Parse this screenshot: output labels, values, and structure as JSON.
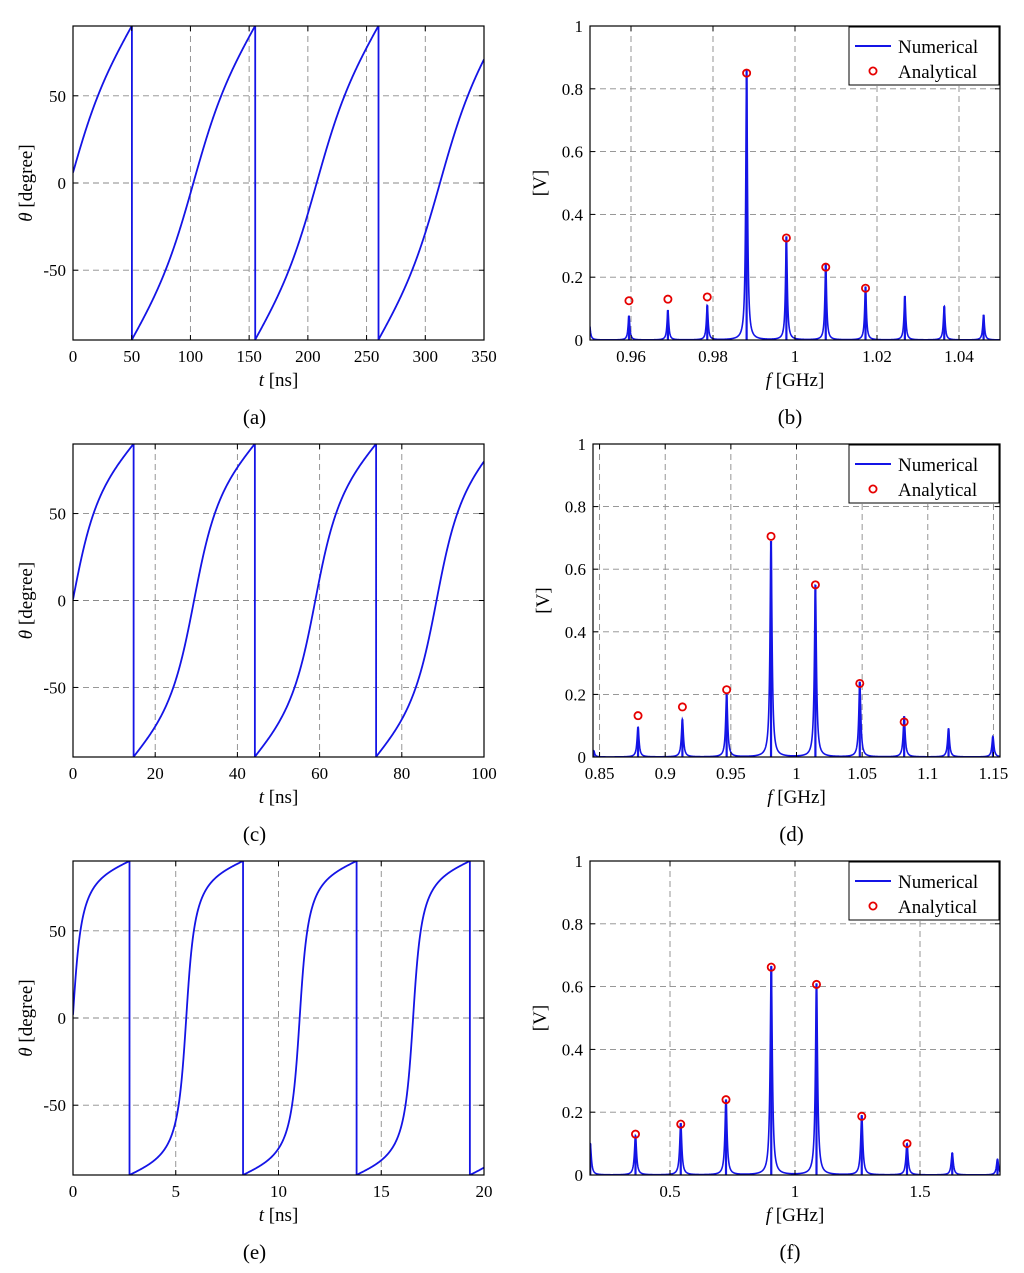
{
  "figure": {
    "panel_labels": [
      "(a)",
      "(b)",
      "(c)",
      "(d)",
      "(e)",
      "(f)"
    ],
    "colors": {
      "numerical": "#1414e6",
      "analytical": "#e60000",
      "grid": "#8a8a8a"
    }
  },
  "chart_data": [
    {
      "id": "a",
      "type": "line",
      "title": "",
      "panel_label": "(a)",
      "xlabel_symbol": "t",
      "xlabel_unit": " [ns]",
      "ylabel_symbol": "θ",
      "ylabel_unit": " [degree]",
      "xlim": [
        0,
        350
      ],
      "ylim": [
        -90,
        90
      ],
      "xticks": [
        0,
        50,
        100,
        150,
        200,
        250,
        300,
        350
      ],
      "xtick_labels": [
        "0",
        "50",
        "100",
        "150",
        "200",
        "250",
        "300",
        "350"
      ],
      "yticks": [
        -50,
        0,
        50
      ],
      "ytick_labels": [
        "-50",
        "0",
        "50"
      ],
      "series": [
        {
          "name": "θ(t)",
          "model": "phase_slip",
          "period": 105,
          "phase_offset": 50,
          "mu": 0.72,
          "curve_points": 300
        }
      ]
    },
    {
      "id": "b",
      "type": "line",
      "title": "",
      "panel_label": "(b)",
      "xlabel_symbol": "f",
      "xlabel_unit": " [GHz]",
      "ylabel_symbol": "",
      "ylabel_unit": "[V]",
      "xlim": [
        0.95,
        1.05
      ],
      "ylim": [
        0,
        1
      ],
      "xticks": [
        0.96,
        0.98,
        1.0,
        1.02,
        1.04
      ],
      "xtick_labels": [
        "0.96",
        "0.98",
        "1",
        "1.02",
        "1.04"
      ],
      "yticks": [
        0,
        0.2,
        0.4,
        0.6,
        0.8,
        1
      ],
      "ytick_labels": [
        "0",
        "0.2",
        "0.4",
        "0.6",
        "0.8",
        "1"
      ],
      "legend": {
        "position": "top-right",
        "entries": [
          "Numerical",
          "Analytical"
        ]
      },
      "series": [
        {
          "name": "Numerical",
          "peak_width": 0.00025,
          "peaks": [
            {
              "f": 0.9498,
              "a": 0.07
            },
            {
              "f": 0.9595,
              "a": 0.077
            },
            {
              "f": 0.969,
              "a": 0.095
            },
            {
              "f": 0.9786,
              "a": 0.11
            },
            {
              "f": 0.9882,
              "a": 0.86
            },
            {
              "f": 0.9979,
              "a": 0.33
            },
            {
              "f": 1.0075,
              "a": 0.24
            },
            {
              "f": 1.0172,
              "a": 0.17
            },
            {
              "f": 1.0268,
              "a": 0.14
            },
            {
              "f": 1.0364,
              "a": 0.107
            },
            {
              "f": 1.046,
              "a": 0.08
            }
          ]
        },
        {
          "name": "Analytical",
          "points": [
            {
              "f": 0.9595,
              "a": 0.125
            },
            {
              "f": 0.969,
              "a": 0.13
            },
            {
              "f": 0.9786,
              "a": 0.137
            },
            {
              "f": 0.9882,
              "a": 0.85
            },
            {
              "f": 0.9979,
              "a": 0.325
            },
            {
              "f": 1.0075,
              "a": 0.232
            },
            {
              "f": 1.0172,
              "a": 0.165
            }
          ]
        }
      ]
    },
    {
      "id": "c",
      "type": "line",
      "title": "",
      "panel_label": "(c)",
      "xlabel_symbol": "t",
      "xlabel_unit": " [ns]",
      "ylabel_symbol": "θ",
      "ylabel_unit": " [degree]",
      "xlim": [
        0,
        100
      ],
      "ylim": [
        -90,
        90
      ],
      "xticks": [
        0,
        20,
        40,
        60,
        80,
        100
      ],
      "xtick_labels": [
        "0",
        "20",
        "40",
        "60",
        "80",
        "100"
      ],
      "yticks": [
        -50,
        0,
        50
      ],
      "ytick_labels": [
        "-50",
        "0",
        "50"
      ],
      "series": [
        {
          "name": "θ(t)",
          "model": "phase_slip",
          "period": 29.5,
          "phase_offset": 14.7,
          "mu": 0.5,
          "curve_points": 300
        }
      ]
    },
    {
      "id": "d",
      "type": "line",
      "title": "",
      "panel_label": "(d)",
      "xlabel_symbol": "f",
      "xlabel_unit": " [GHz]",
      "ylabel_symbol": "",
      "ylabel_unit": "[V]",
      "xlim": [
        0.845,
        1.155
      ],
      "ylim": [
        0,
        1
      ],
      "xticks": [
        0.85,
        0.9,
        0.95,
        1.0,
        1.05,
        1.1,
        1.15
      ],
      "xtick_labels": [
        "0.85",
        "0.9",
        "0.95",
        "1",
        "1.05",
        "1.1",
        "1.15"
      ],
      "yticks": [
        0,
        0.2,
        0.4,
        0.6,
        0.8,
        1
      ],
      "ytick_labels": [
        "0",
        "0.2",
        "0.4",
        "0.6",
        "0.8",
        "1"
      ],
      "legend": {
        "position": "top-right",
        "entries": [
          "Numerical",
          "Analytical"
        ]
      },
      "series": [
        {
          "name": "Numerical",
          "peak_width": 0.0009,
          "peaks": [
            {
              "f": 0.8455,
              "a": 0.02
            },
            {
              "f": 0.8793,
              "a": 0.095
            },
            {
              "f": 0.9131,
              "a": 0.12
            },
            {
              "f": 0.9468,
              "a": 0.2
            },
            {
              "f": 0.9806,
              "a": 0.69
            },
            {
              "f": 1.0144,
              "a": 0.55
            },
            {
              "f": 1.0482,
              "a": 0.24
            },
            {
              "f": 1.082,
              "a": 0.13
            },
            {
              "f": 1.1158,
              "a": 0.09
            },
            {
              "f": 1.1496,
              "a": 0.065
            }
          ]
        },
        {
          "name": "Analytical",
          "points": [
            {
              "f": 0.8793,
              "a": 0.132
            },
            {
              "f": 0.9131,
              "a": 0.16
            },
            {
              "f": 0.9468,
              "a": 0.215
            },
            {
              "f": 0.9806,
              "a": 0.705
            },
            {
              "f": 1.0144,
              "a": 0.55
            },
            {
              "f": 1.0482,
              "a": 0.235
            },
            {
              "f": 1.082,
              "a": 0.112
            }
          ]
        }
      ]
    },
    {
      "id": "e",
      "type": "line",
      "title": "",
      "panel_label": "(e)",
      "xlabel_symbol": "t",
      "xlabel_unit": " [ns]",
      "ylabel_symbol": "θ",
      "ylabel_unit": " [degree]",
      "xlim": [
        0,
        20
      ],
      "ylim": [
        -90,
        90
      ],
      "xticks": [
        0,
        5,
        10,
        15,
        20
      ],
      "xtick_labels": [
        "0",
        "5",
        "10",
        "15",
        "20"
      ],
      "yticks": [
        -50,
        0,
        50
      ],
      "ytick_labels": [
        "-50",
        "0",
        "50"
      ],
      "series": [
        {
          "name": "θ(t)",
          "model": "phase_slip",
          "period": 5.52,
          "phase_offset": 2.75,
          "mu": 0.18,
          "curve_points": 400
        }
      ]
    },
    {
      "id": "f",
      "type": "line",
      "title": "",
      "panel_label": "(f)",
      "xlabel_symbol": "f",
      "xlabel_unit": " [GHz]",
      "ylabel_symbol": "",
      "ylabel_unit": "[V]",
      "xlim": [
        0.18,
        1.82
      ],
      "ylim": [
        0,
        1
      ],
      "xticks": [
        0.5,
        1.0,
        1.5
      ],
      "xtick_labels": [
        "0.5",
        "1",
        "1.5"
      ],
      "yticks": [
        0,
        0.2,
        0.4,
        0.6,
        0.8,
        1
      ],
      "ytick_labels": [
        "0",
        "0.2",
        "0.4",
        "0.6",
        "0.8",
        "1"
      ],
      "legend": {
        "position": "top-right",
        "entries": [
          "Numerical",
          "Analytical"
        ]
      },
      "series": [
        {
          "name": "Numerical",
          "peak_width": 0.005,
          "peaks": [
            {
              "f": 0.181,
              "a": 0.1
            },
            {
              "f": 0.362,
              "a": 0.125
            },
            {
              "f": 0.543,
              "a": 0.165
            },
            {
              "f": 0.724,
              "a": 0.24
            },
            {
              "f": 0.905,
              "a": 0.665
            },
            {
              "f": 1.086,
              "a": 0.61
            },
            {
              "f": 1.267,
              "a": 0.19
            },
            {
              "f": 1.448,
              "a": 0.1
            },
            {
              "f": 1.629,
              "a": 0.07
            },
            {
              "f": 1.81,
              "a": 0.05
            }
          ]
        },
        {
          "name": "Analytical",
          "points": [
            {
              "f": 0.362,
              "a": 0.13
            },
            {
              "f": 0.543,
              "a": 0.162
            },
            {
              "f": 0.724,
              "a": 0.24
            },
            {
              "f": 0.905,
              "a": 0.662
            },
            {
              "f": 1.086,
              "a": 0.607
            },
            {
              "f": 1.267,
              "a": 0.187
            },
            {
              "f": 1.448,
              "a": 0.1
            }
          ]
        }
      ]
    }
  ]
}
